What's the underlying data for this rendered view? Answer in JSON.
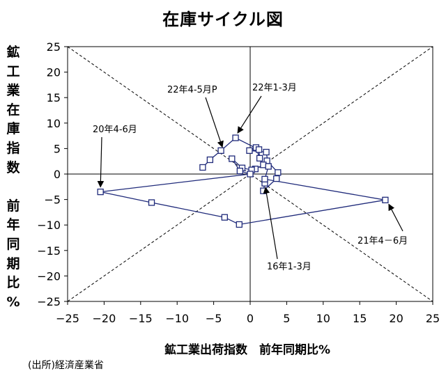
{
  "chart_data": {
    "type": "line",
    "title": "在庫サイクル図",
    "xlabel": "鉱工業出荷指数　前年同期比%",
    "ylabel_chars": [
      "鉱",
      "工",
      "業",
      "在",
      "庫",
      "指",
      "数",
      "",
      "前",
      "年",
      "同",
      "期",
      "比",
      "%"
    ],
    "xlim": [
      -25,
      25
    ],
    "ylim": [
      -25,
      25
    ],
    "xticks": [
      "−25",
      "−20",
      "−15",
      "−10",
      "−5",
      "0",
      "5",
      "10",
      "15",
      "20",
      "25"
    ],
    "yticks": [
      "25",
      "20",
      "15",
      "10",
      "5",
      "0",
      "−5",
      "−10",
      "−15",
      "−20",
      "−25"
    ],
    "grid": false,
    "series": [
      {
        "name": "在庫サイクル",
        "color": "#1f2a7a",
        "points": [
          [
            2.0,
            -1.8
          ],
          [
            1.8,
            -3.3
          ],
          [
            3.6,
            -0.9
          ],
          [
            3.8,
            0.3
          ],
          [
            2.3,
            2.6
          ],
          [
            1.8,
            1.8
          ],
          [
            0.7,
            1.0
          ],
          [
            0.2,
            0.8
          ],
          [
            -1.1,
            1.2
          ],
          [
            -2.5,
            3.0
          ],
          [
            -1.4,
            0.6
          ],
          [
            0.0,
            0.0
          ],
          [
            -20.5,
            -3.5
          ],
          [
            -13.5,
            -5.6
          ],
          [
            -3.5,
            -8.5
          ],
          [
            -1.5,
            -9.9
          ],
          [
            18.5,
            -5.1
          ],
          [
            2.0,
            -1.0
          ],
          [
            2.5,
            1.5
          ],
          [
            2.2,
            4.3
          ],
          [
            -0.1,
            4.6
          ],
          [
            0.8,
            5.2
          ],
          [
            1.3,
            3.1
          ],
          [
            1.2,
            4.8
          ],
          [
            -2.0,
            7.1
          ],
          [
            -4.0,
            4.6
          ],
          [
            -5.5,
            2.8
          ],
          [
            -6.5,
            1.3
          ]
        ]
      }
    ],
    "annotations": [
      {
        "text": "22年4-5月P",
        "x": -4.0,
        "y": 4.6
      },
      {
        "text": "22年1-3月",
        "x": -2.0,
        "y": 7.1
      },
      {
        "text": "20年4-6月",
        "x": -20.5,
        "y": -3.5
      },
      {
        "text": "21年4－6月",
        "x": 18.5,
        "y": -5.1
      },
      {
        "text": "16年1-3月",
        "x": 2.0,
        "y": -1.8
      }
    ]
  },
  "source": "(出所)経済産業省"
}
